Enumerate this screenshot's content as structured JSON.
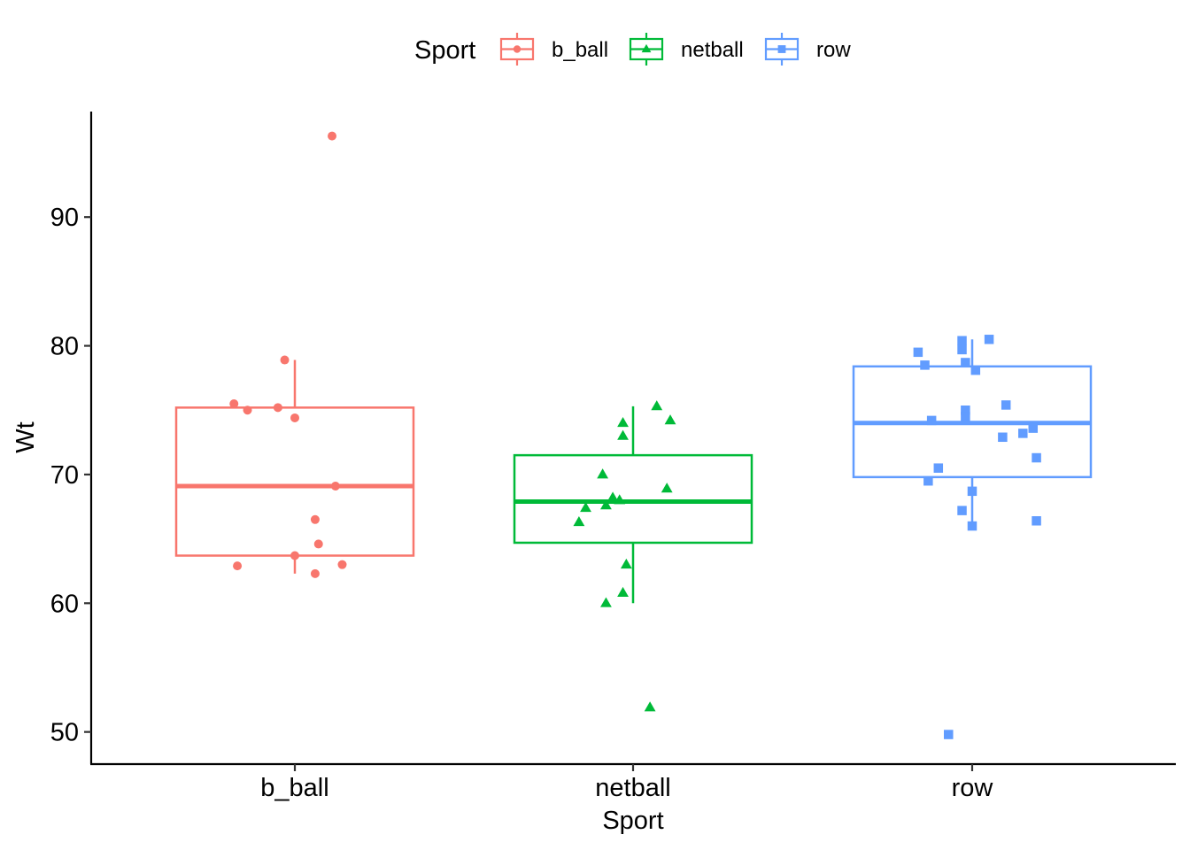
{
  "chart_data": {
    "type": "boxplot",
    "title": "",
    "xlabel": "Sport",
    "ylabel": "Wt",
    "ylim": [
      47.5,
      98.2
    ],
    "yticks": [
      50,
      60,
      70,
      80,
      90
    ],
    "grid": false,
    "legend": {
      "title": "Sport",
      "position": "top"
    },
    "categories": [
      "b_ball",
      "netball",
      "row"
    ],
    "series": [
      {
        "name": "b_ball",
        "color": "#F8766D",
        "shape": "circle",
        "box": {
          "lower_whisker": 62.3,
          "q1": 63.7,
          "median": 69.1,
          "q3": 75.2,
          "upper_whisker": 78.9
        },
        "points": [
          {
            "jitter": 0.11,
            "y": 96.3
          },
          {
            "jitter": -0.03,
            "y": 78.9
          },
          {
            "jitter": -0.18,
            "y": 75.5
          },
          {
            "jitter": -0.14,
            "y": 75.0
          },
          {
            "jitter": -0.05,
            "y": 75.2
          },
          {
            "jitter": 0.0,
            "y": 74.4
          },
          {
            "jitter": 0.12,
            "y": 69.1
          },
          {
            "jitter": 0.06,
            "y": 66.5
          },
          {
            "jitter": 0.07,
            "y": 64.6
          },
          {
            "jitter": 0.0,
            "y": 63.7
          },
          {
            "jitter": -0.17,
            "y": 62.9
          },
          {
            "jitter": 0.14,
            "y": 63.0
          },
          {
            "jitter": 0.06,
            "y": 62.3
          }
        ]
      },
      {
        "name": "netball",
        "color": "#00BA38",
        "shape": "triangle",
        "box": {
          "lower_whisker": 60.0,
          "q1": 64.7,
          "median": 67.9,
          "q3": 71.5,
          "upper_whisker": 75.3
        },
        "points": [
          {
            "jitter": 0.07,
            "y": 75.3
          },
          {
            "jitter": 0.11,
            "y": 74.2
          },
          {
            "jitter": -0.03,
            "y": 74.0
          },
          {
            "jitter": -0.03,
            "y": 73.0
          },
          {
            "jitter": -0.09,
            "y": 70.0
          },
          {
            "jitter": 0.1,
            "y": 68.9
          },
          {
            "jitter": -0.06,
            "y": 68.2
          },
          {
            "jitter": -0.04,
            "y": 68.0
          },
          {
            "jitter": -0.08,
            "y": 67.6
          },
          {
            "jitter": -0.14,
            "y": 67.4
          },
          {
            "jitter": -0.16,
            "y": 66.3
          },
          {
            "jitter": -0.02,
            "y": 63.0
          },
          {
            "jitter": -0.03,
            "y": 60.8
          },
          {
            "jitter": -0.08,
            "y": 60.0
          },
          {
            "jitter": 0.05,
            "y": 51.9
          }
        ]
      },
      {
        "name": "row",
        "color": "#619CFF",
        "shape": "square",
        "box": {
          "lower_whisker": 66.0,
          "q1": 69.8,
          "median": 74.0,
          "q3": 78.4,
          "upper_whisker": 80.5
        },
        "points": [
          {
            "jitter": 0.05,
            "y": 80.5
          },
          {
            "jitter": -0.03,
            "y": 80.4
          },
          {
            "jitter": -0.16,
            "y": 79.5
          },
          {
            "jitter": -0.03,
            "y": 79.7
          },
          {
            "jitter": -0.02,
            "y": 78.7
          },
          {
            "jitter": -0.14,
            "y": 78.5
          },
          {
            "jitter": 0.01,
            "y": 78.1
          },
          {
            "jitter": 0.1,
            "y": 75.4
          },
          {
            "jitter": -0.02,
            "y": 75.0
          },
          {
            "jitter": -0.02,
            "y": 74.5
          },
          {
            "jitter": -0.12,
            "y": 74.2
          },
          {
            "jitter": 0.18,
            "y": 73.6
          },
          {
            "jitter": 0.15,
            "y": 73.2
          },
          {
            "jitter": 0.09,
            "y": 72.9
          },
          {
            "jitter": 0.19,
            "y": 71.3
          },
          {
            "jitter": -0.1,
            "y": 70.5
          },
          {
            "jitter": -0.13,
            "y": 69.5
          },
          {
            "jitter": 0.0,
            "y": 68.7
          },
          {
            "jitter": -0.03,
            "y": 67.2
          },
          {
            "jitter": 0.19,
            "y": 66.4
          },
          {
            "jitter": 0.0,
            "y": 66.0
          },
          {
            "jitter": -0.07,
            "y": 49.8
          }
        ]
      }
    ]
  }
}
